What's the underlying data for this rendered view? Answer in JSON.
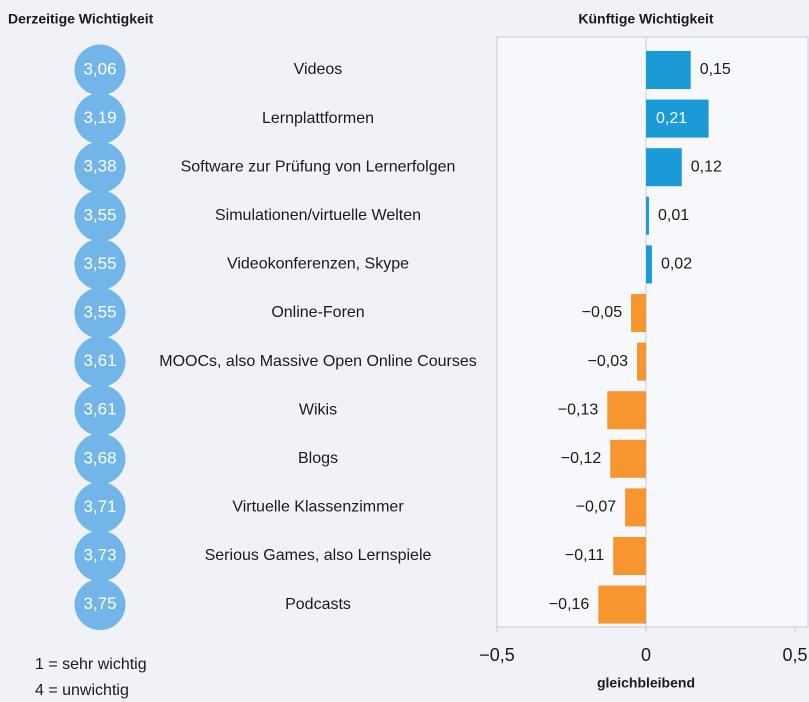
{
  "chart_data": {
    "type": "bar",
    "orientation": "horizontal",
    "title": "Künftige Wichtigkeit",
    "current_title": "Derzeitige Wichtigkeit",
    "categories": [
      "Videos",
      "Lernplattformen",
      "Software zur Prüfung von Lernerfolgen",
      "Simulationen/virtuelle Welten",
      "Videokonferenzen, Skype",
      "Online-Foren",
      "MOOCs, also Massive Open Online Courses",
      "Wikis",
      "Blogs",
      "Virtuelle Klassenzimmer",
      "Serious Games, also Lernspiele",
      "Podcasts"
    ],
    "current_values": [
      3.06,
      3.19,
      3.38,
      3.55,
      3.55,
      3.55,
      3.61,
      3.61,
      3.68,
      3.71,
      3.73,
      3.75
    ],
    "current_value_labels": [
      "3,06",
      "3,19",
      "3,38",
      "3,55",
      "3,55",
      "3,55",
      "3,61",
      "3,61",
      "3,68",
      "3,71",
      "3,73",
      "3,75"
    ],
    "current_color": "#72b5e8",
    "values": [
      0.15,
      0.21,
      0.12,
      0.01,
      0.02,
      -0.05,
      -0.03,
      -0.13,
      -0.12,
      -0.07,
      -0.11,
      -0.16
    ],
    "value_labels": [
      "0,15",
      "0,21",
      "0,12",
      "0,01",
      "0,02",
      "−0,05",
      "−0,03",
      "−0,13",
      "−0,12",
      "−0,07",
      "−0,11",
      "−0,16"
    ],
    "positive_color": "#1a9ad6",
    "negative_color": "#f7962f",
    "xlim": [
      -0.5,
      0.5
    ],
    "xticks": [
      {
        "value": -0.5,
        "label": "−0,5"
      },
      0,
      {
        "value": 0.5,
        "label": "0,5"
      }
    ],
    "x_label": "gleichbleibend",
    "notes": [
      "1 = sehr wichtig",
      "4 = unwichtig"
    ]
  }
}
